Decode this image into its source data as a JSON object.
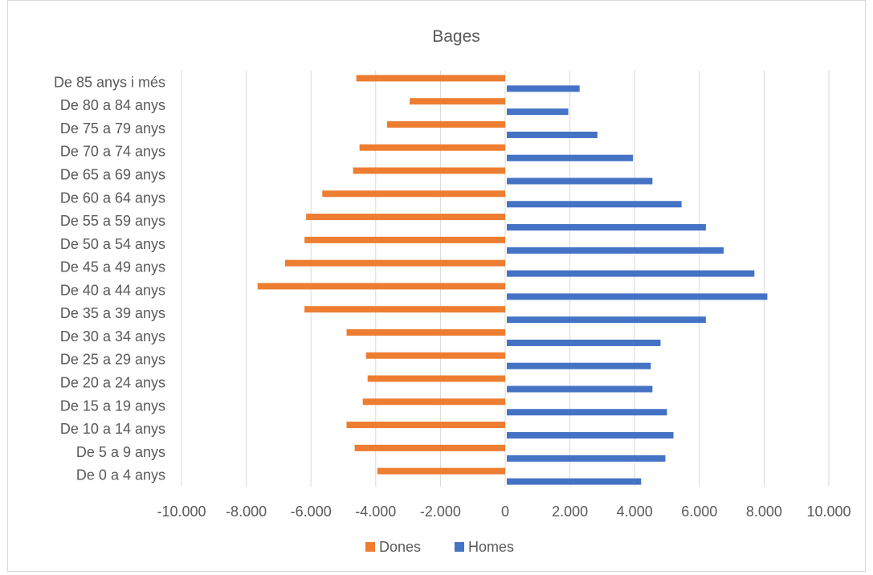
{
  "page_heading": "",
  "chart_data": {
    "type": "bar",
    "orientation": "horizontal",
    "title": "Bages",
    "categories": [
      "De 0 a 4 anys",
      "De 5 a 9 anys",
      "De 10 a 14 anys",
      "De 15 a 19 anys",
      "De 20 a 24 anys",
      "De 25 a 29 anys",
      "De 30 a 34 anys",
      "De 35 a 39 anys",
      "De 40 a 44 anys",
      "De 45 a 49 anys",
      "De 50 a 54 anys",
      "De 55 a 59 anys",
      "De 60 a 64 anys",
      "De 65 a 69 anys",
      "De 70 a 74 anys",
      "De 75 a 79 anys",
      "De 80 a 84 anys",
      "De 85 anys i més"
    ],
    "series": [
      {
        "name": "Dones",
        "color": "#ED7D31",
        "values": [
          -3950,
          -4650,
          -4900,
          -4400,
          -4250,
          -4300,
          -4900,
          -6200,
          -7650,
          -6800,
          -6200,
          -6150,
          -5650,
          -4700,
          -4500,
          -3650,
          -2950,
          -4600
        ]
      },
      {
        "name": "Homes",
        "color": "#4472C4",
        "values": [
          4200,
          4950,
          5200,
          5000,
          4550,
          4500,
          4800,
          6200,
          8100,
          7700,
          6750,
          6200,
          5450,
          4550,
          3950,
          2850,
          1950,
          2300
        ]
      }
    ],
    "xlim": [
      -10000,
      10000
    ],
    "xticks": [
      -10000,
      -8000,
      -6000,
      -4000,
      -2000,
      0,
      2000,
      4000,
      6000,
      8000,
      10000
    ],
    "xtick_labels": [
      "-10.000",
      "-8.000",
      "-6.000",
      "-4.000",
      "-2.000",
      "0",
      "2.000",
      "4.000",
      "6.000",
      "8.000",
      "10.000"
    ],
    "xlabel": "",
    "ylabel": "",
    "grid": "vertical",
    "legend": "bottom-center"
  }
}
